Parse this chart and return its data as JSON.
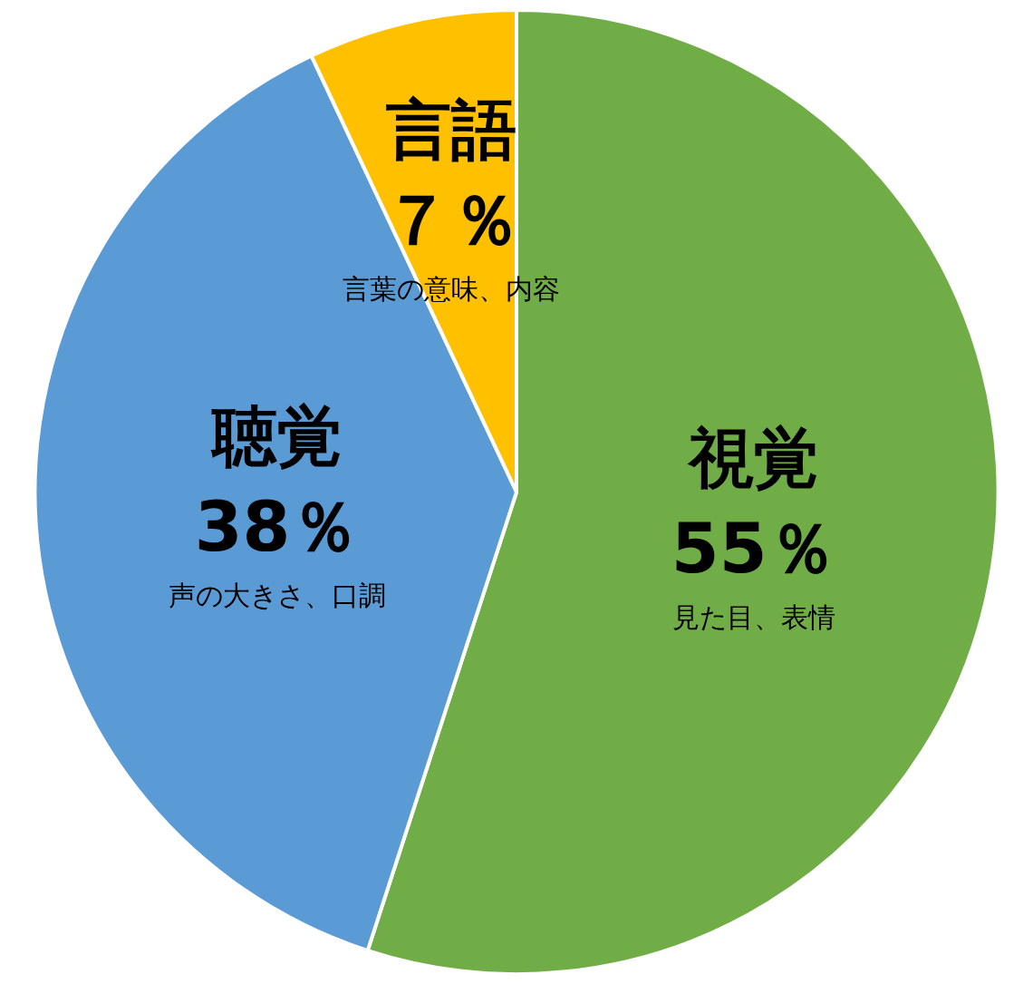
{
  "chart_data": {
    "type": "pie",
    "categories": [
      "視覚",
      "聴覚",
      "言語"
    ],
    "values": [
      55,
      38,
      7
    ],
    "colors": [
      "#70ad47",
      "#5b9bd5",
      "#ffc000"
    ],
    "value_labels": [
      "55％",
      "38％",
      "７％"
    ],
    "annotations": [
      "見た目、表情",
      "声の大きさ、口調",
      "言葉の意味、内容"
    ],
    "legend": false
  }
}
